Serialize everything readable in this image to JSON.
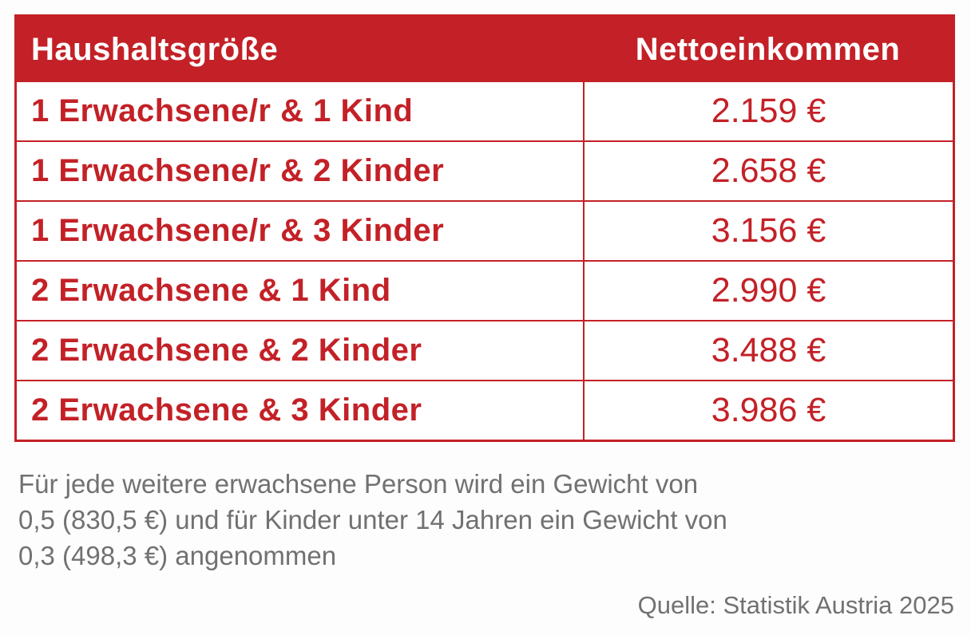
{
  "chart_data": {
    "type": "table",
    "columns": [
      "Haushaltsgröße",
      "Nettoeinkommen"
    ],
    "rows": [
      [
        "1 Erwachsene/r & 1 Kind",
        "2.159 €"
      ],
      [
        "1 Erwachsene/r & 2 Kinder",
        "2.658 €"
      ],
      [
        "1 Erwachsene/r & 3 Kinder",
        "3.156 €"
      ],
      [
        "2 Erwachsene & 1 Kind",
        "2.990 €"
      ],
      [
        "2 Erwachsene & 2 Kinder",
        "3.488 €"
      ],
      [
        "2 Erwachsene & 3 Kinder",
        "3.986 €"
      ]
    ],
    "values_eur": [
      2159,
      2658,
      3156,
      2990,
      3488,
      3986
    ],
    "footnote": "Für jede weitere erwachsene Person wird ein Gewicht von 0,5 (830,5 €) und für Kinder unter 14 Jahren ein Gewicht von 0,3 (498,3 €) angenommen",
    "source": "Quelle: Statistik Austria 2025"
  },
  "footnote_lines": [
    "Für jede weitere erwachsene Person wird ein Gewicht von",
    "0,5 (830,5 €) und für Kinder unter 14 Jahren ein Gewicht von",
    "0,3 (498,3 €) angenommen"
  ],
  "colors": {
    "accent_red": "#c32127",
    "text_gray": "#717171",
    "background": "#fdfdfd"
  }
}
